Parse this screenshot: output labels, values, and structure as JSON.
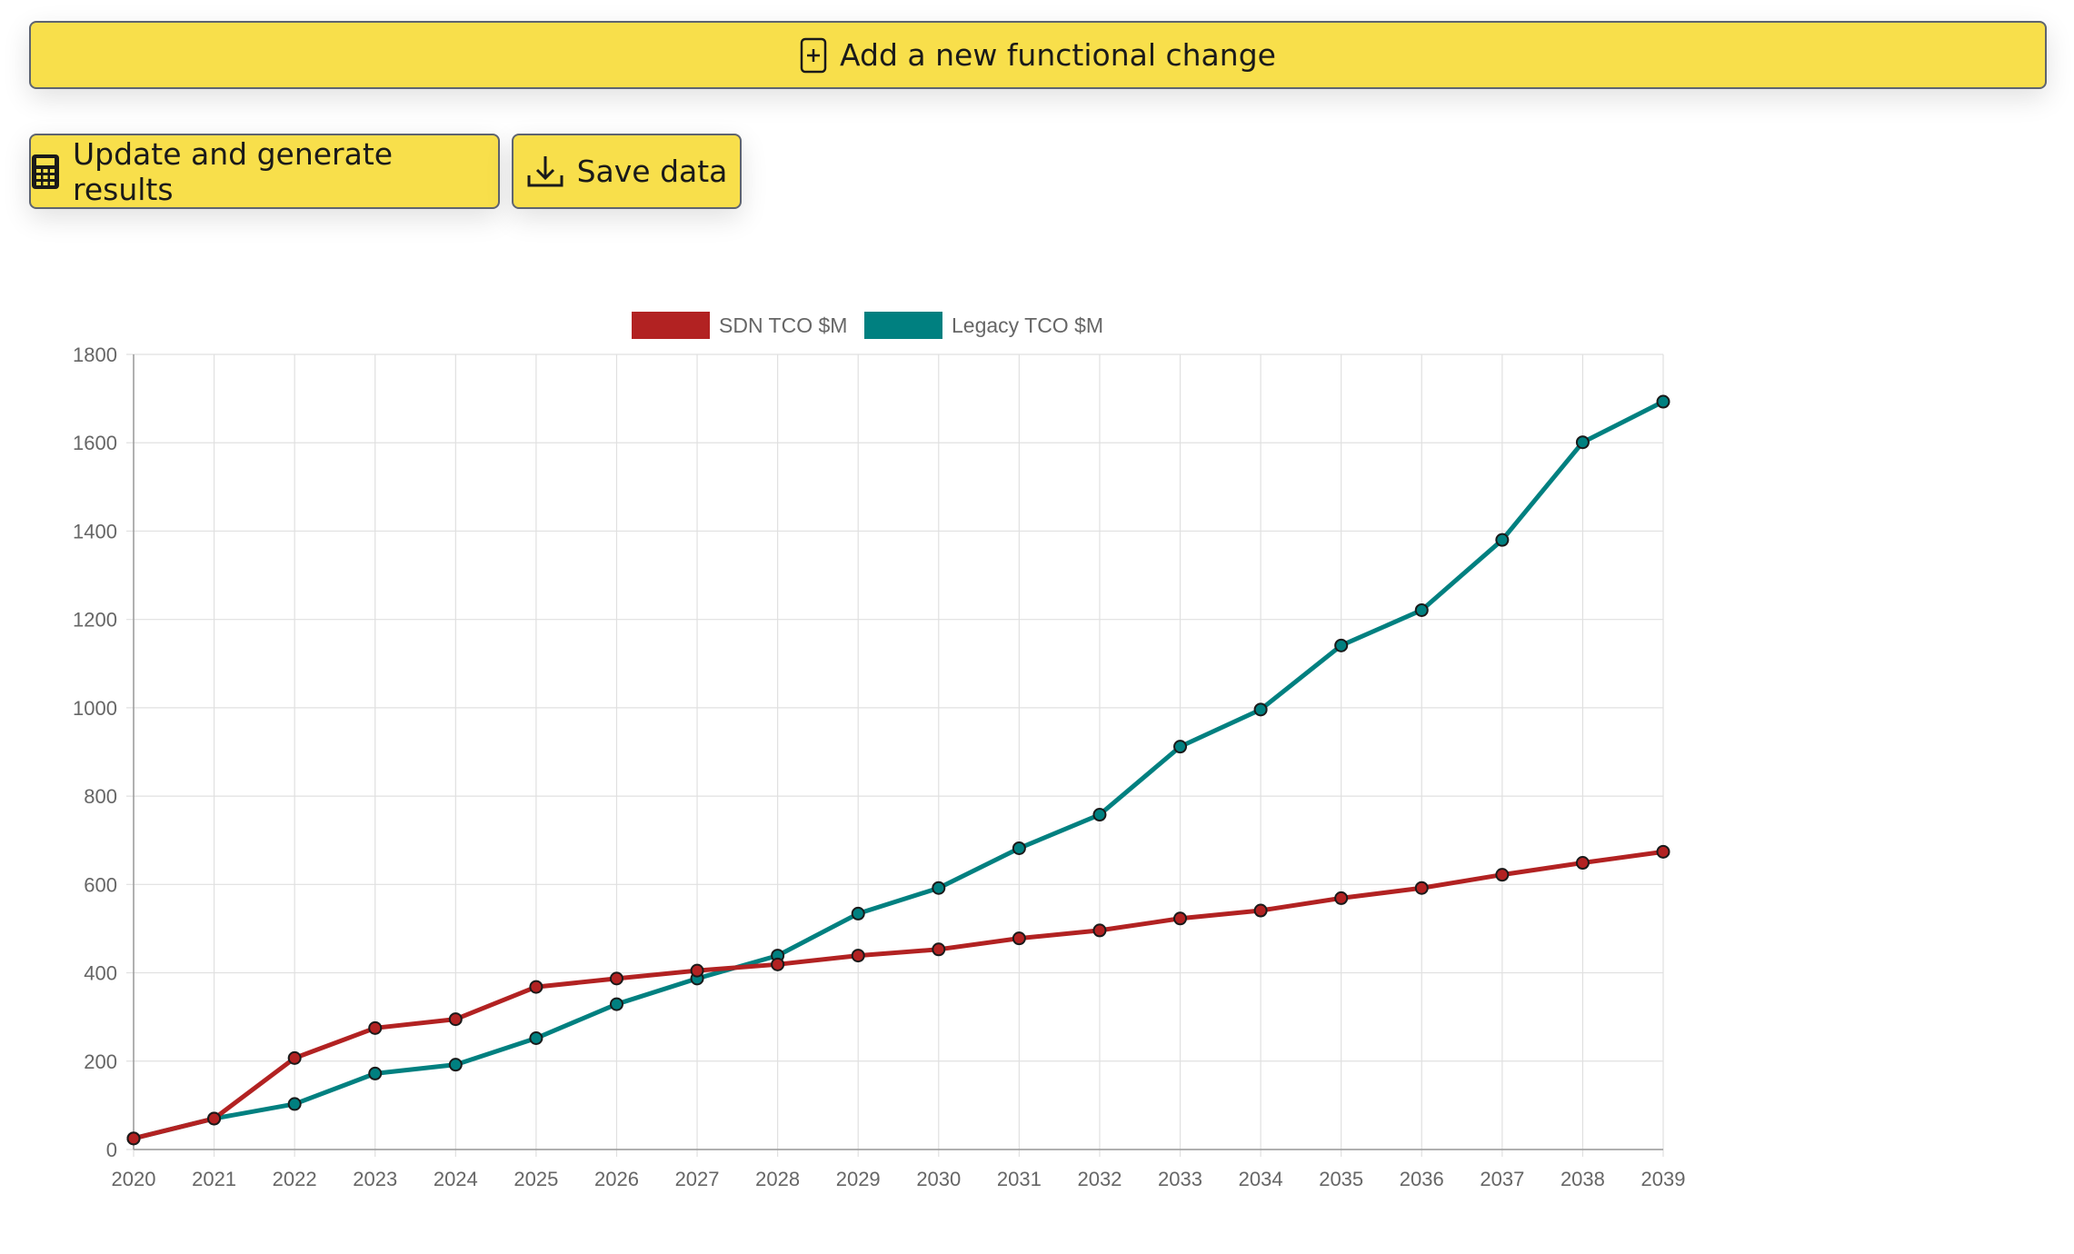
{
  "toolbar": {
    "add_label": "Add a new functional change",
    "update_label": "Update and generate results",
    "save_label": "Save data",
    "button_color": "#f8df4b"
  },
  "icons": {
    "add": "plus-square-icon",
    "update": "calculator-icon",
    "save": "download-icon"
  },
  "chart_data": {
    "type": "line",
    "x": [
      "2020",
      "2021",
      "2022",
      "2023",
      "2024",
      "2025",
      "2026",
      "2027",
      "2028",
      "2029",
      "2030",
      "2031",
      "2032",
      "2033",
      "2034",
      "2035",
      "2036",
      "2037",
      "2038",
      "2039"
    ],
    "series": [
      {
        "name": "SDN TCO $M",
        "color": "#b22222",
        "values": [
          25,
          70,
          207,
          275,
          295,
          368,
          387,
          405,
          419,
          439,
          453,
          478,
          496,
          523,
          541,
          569,
          592,
          622,
          649,
          674
        ]
      },
      {
        "name": "Legacy TCO $M",
        "color": "#008080",
        "values": [
          25,
          70,
          103,
          172,
          192,
          252,
          329,
          387,
          439,
          534,
          592,
          682,
          758,
          912,
          996,
          1141,
          1221,
          1380,
          1601,
          1693
        ]
      }
    ],
    "ylim": [
      0,
      1800
    ],
    "yticks": [
      "0",
      "200",
      "400",
      "600",
      "800",
      "1000",
      "1200",
      "1400",
      "1600",
      "1800"
    ],
    "grid": true,
    "legend": "top-center",
    "title": "",
    "xlabel": "",
    "ylabel": ""
  }
}
